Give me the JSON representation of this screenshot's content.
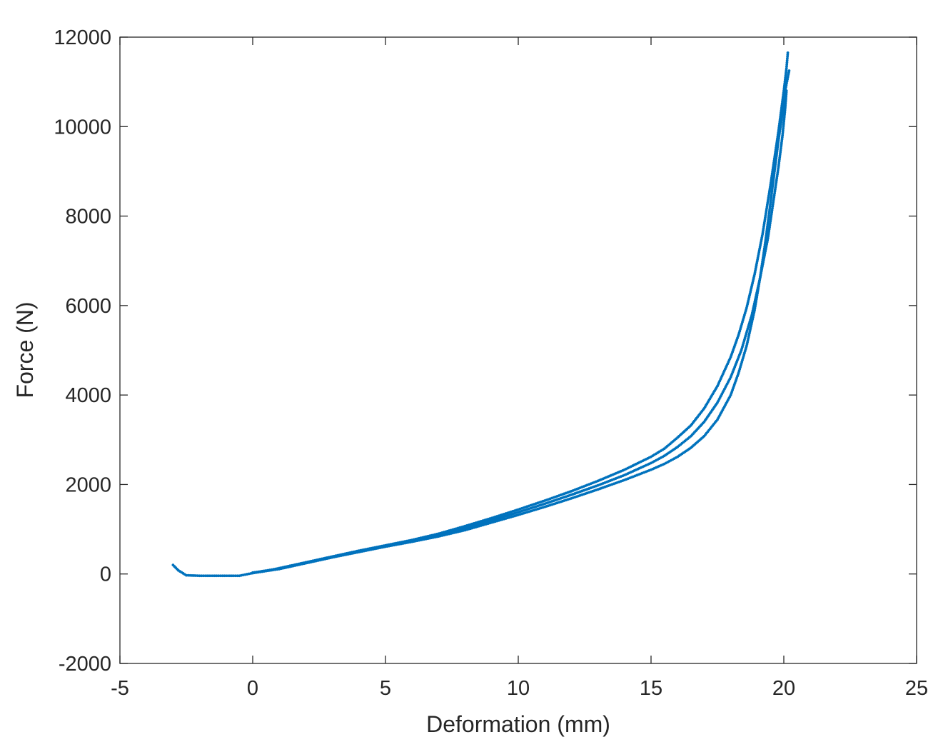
{
  "chart_data": {
    "type": "scatter",
    "title": "",
    "xlabel": "Deformation (mm)",
    "ylabel": "Force (N)",
    "xlim": [
      -5,
      25
    ],
    "ylim": [
      -2000,
      12000
    ],
    "xticks": [
      "-5",
      "0",
      "5",
      "10",
      "15",
      "20",
      "25"
    ],
    "yticks": [
      "-2000",
      "0",
      "2000",
      "4000",
      "6000",
      "8000",
      "10000",
      "12000"
    ],
    "grid": false,
    "legend": "none",
    "marker_color": "#0072BD",
    "series": [
      {
        "x": [
          -3.0,
          -2.8,
          -2.5,
          -2.0,
          -1.5,
          -1.0,
          -0.5,
          0,
          0.5,
          1,
          2,
          3,
          4,
          5,
          6,
          7,
          8,
          9,
          10,
          11,
          12,
          13,
          14,
          15,
          15.5,
          16,
          16.5,
          17,
          17.5,
          18,
          18.3,
          18.6,
          18.9,
          19.2,
          19.5,
          19.8,
          20.0,
          20.1,
          20.15
        ],
        "y": [
          200,
          80,
          -30,
          -40,
          -40,
          -40,
          -40,
          20,
          70,
          130,
          260,
          390,
          520,
          640,
          760,
          900,
          1070,
          1250,
          1440,
          1640,
          1850,
          2080,
          2330,
          2620,
          2800,
          3050,
          3320,
          3700,
          4200,
          4850,
          5350,
          5950,
          6700,
          7600,
          8700,
          9900,
          10800,
          11300,
          11650
        ]
      },
      {
        "x": [
          0,
          1,
          2,
          3,
          4,
          5,
          6,
          7,
          8,
          9,
          10,
          11,
          12,
          13,
          14,
          15,
          15.5,
          16,
          16.5,
          17,
          17.5,
          18,
          18.4,
          18.8,
          19.1,
          19.4,
          19.6,
          19.8,
          19.95,
          20.05,
          20.1
        ],
        "y": [
          30,
          120,
          250,
          380,
          500,
          620,
          740,
          860,
          1020,
          1200,
          1380,
          1570,
          1770,
          1980,
          2210,
          2480,
          2640,
          2840,
          3080,
          3400,
          3830,
          4400,
          5000,
          5800,
          6600,
          7500,
          8300,
          9100,
          9800,
          10400,
          10800
        ]
      },
      {
        "x": [
          0,
          1,
          2,
          3,
          4,
          5,
          6,
          7,
          8,
          9,
          10,
          11,
          12,
          13,
          14,
          15,
          15.5,
          16,
          16.5,
          17,
          17.5,
          18,
          18.3,
          18.6,
          18.9,
          19.1,
          19.3,
          19.5,
          19.65,
          19.8,
          19.95,
          20.05,
          20.15,
          20.2
        ],
        "y": [
          20,
          110,
          240,
          370,
          490,
          610,
          720,
          840,
          980,
          1150,
          1320,
          1500,
          1690,
          1890,
          2100,
          2330,
          2460,
          2620,
          2820,
          3080,
          3450,
          4000,
          4500,
          5100,
          5900,
          6600,
          7400,
          8300,
          9000,
          9700,
          10300,
          10800,
          11100,
          11250
        ]
      }
    ]
  }
}
